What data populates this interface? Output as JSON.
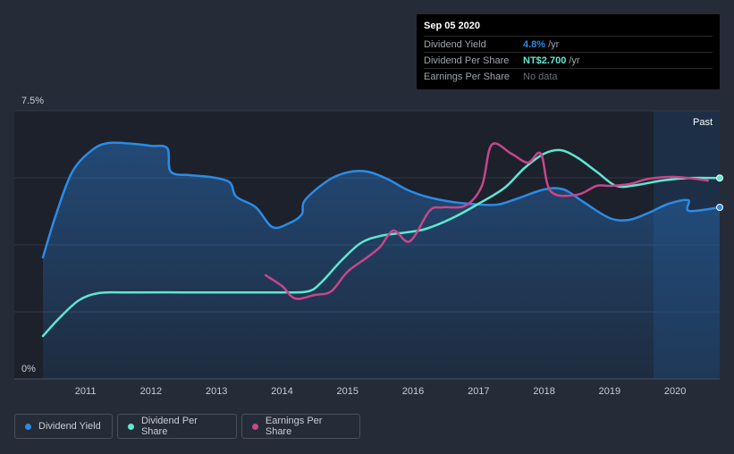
{
  "chart_data": {
    "type": "line",
    "x_ticks": [
      "2011",
      "2012",
      "2013",
      "2014",
      "2015",
      "2016",
      "2017",
      "2018",
      "2019",
      "2020"
    ],
    "y_ticks": [
      "7.5%",
      "0%"
    ],
    "xlim": [
      2010.35,
      2020.68
    ],
    "ylim": [
      0,
      7.5
    ],
    "past_label": "Past",
    "series": [
      {
        "name": "Dividend Yield",
        "key": "yield",
        "color": "#2b8be6",
        "fill": true,
        "points": [
          [
            2010.35,
            3.4
          ],
          [
            2010.55,
            4.6
          ],
          [
            2010.8,
            5.8
          ],
          [
            2011.1,
            6.4
          ],
          [
            2011.35,
            6.6
          ],
          [
            2011.7,
            6.58
          ],
          [
            2012.0,
            6.52
          ],
          [
            2012.25,
            6.45
          ],
          [
            2012.3,
            5.8
          ],
          [
            2012.6,
            5.7
          ],
          [
            2012.9,
            5.65
          ],
          [
            2013.2,
            5.5
          ],
          [
            2013.3,
            5.1
          ],
          [
            2013.6,
            4.8
          ],
          [
            2013.85,
            4.25
          ],
          [
            2014.1,
            4.35
          ],
          [
            2014.3,
            4.6
          ],
          [
            2014.35,
            5.0
          ],
          [
            2014.7,
            5.55
          ],
          [
            2015.0,
            5.78
          ],
          [
            2015.3,
            5.8
          ],
          [
            2015.6,
            5.6
          ],
          [
            2015.9,
            5.3
          ],
          [
            2016.2,
            5.1
          ],
          [
            2016.6,
            4.95
          ],
          [
            2017.0,
            4.88
          ],
          [
            2017.3,
            4.88
          ],
          [
            2017.6,
            5.05
          ],
          [
            2018.0,
            5.3
          ],
          [
            2018.3,
            5.3
          ],
          [
            2018.6,
            4.95
          ],
          [
            2019.0,
            4.5
          ],
          [
            2019.3,
            4.45
          ],
          [
            2019.6,
            4.65
          ],
          [
            2019.9,
            4.9
          ],
          [
            2020.2,
            5.0
          ],
          [
            2020.21,
            4.7
          ],
          [
            2020.68,
            4.8
          ]
        ]
      },
      {
        "name": "Dividend Per Share",
        "key": "dps",
        "color": "#5fe7d1",
        "fill": false,
        "points": [
          [
            2010.35,
            1.2
          ],
          [
            2010.6,
            1.7
          ],
          [
            2010.9,
            2.2
          ],
          [
            2011.2,
            2.4
          ],
          [
            2011.6,
            2.42
          ],
          [
            2012.5,
            2.42
          ],
          [
            2013.5,
            2.42
          ],
          [
            2014.0,
            2.42
          ],
          [
            2014.4,
            2.45
          ],
          [
            2014.6,
            2.7
          ],
          [
            2014.9,
            3.3
          ],
          [
            2015.2,
            3.8
          ],
          [
            2015.5,
            4.0
          ],
          [
            2015.9,
            4.1
          ],
          [
            2016.2,
            4.2
          ],
          [
            2016.6,
            4.5
          ],
          [
            2017.0,
            4.9
          ],
          [
            2017.4,
            5.35
          ],
          [
            2017.7,
            5.9
          ],
          [
            2018.0,
            6.3
          ],
          [
            2018.25,
            6.4
          ],
          [
            2018.5,
            6.2
          ],
          [
            2018.8,
            5.8
          ],
          [
            2019.1,
            5.4
          ],
          [
            2019.4,
            5.42
          ],
          [
            2019.8,
            5.55
          ],
          [
            2020.2,
            5.62
          ],
          [
            2020.68,
            5.62
          ]
        ]
      },
      {
        "name": "Earnings Per Share",
        "key": "eps",
        "color": "#c7468a",
        "fill": false,
        "points": [
          [
            2013.75,
            2.9
          ],
          [
            2014.0,
            2.6
          ],
          [
            2014.2,
            2.25
          ],
          [
            2014.5,
            2.35
          ],
          [
            2014.75,
            2.45
          ],
          [
            2015.0,
            3.0
          ],
          [
            2015.3,
            3.4
          ],
          [
            2015.5,
            3.7
          ],
          [
            2015.7,
            4.15
          ],
          [
            2015.95,
            3.85
          ],
          [
            2016.25,
            4.7
          ],
          [
            2016.45,
            4.8
          ],
          [
            2016.8,
            4.85
          ],
          [
            2017.05,
            5.4
          ],
          [
            2017.2,
            6.55
          ],
          [
            2017.5,
            6.3
          ],
          [
            2017.75,
            6.05
          ],
          [
            2017.95,
            6.3
          ],
          [
            2018.1,
            5.25
          ],
          [
            2018.5,
            5.15
          ],
          [
            2018.8,
            5.4
          ],
          [
            2019.0,
            5.4
          ],
          [
            2019.3,
            5.45
          ],
          [
            2019.6,
            5.6
          ],
          [
            2020.0,
            5.65
          ],
          [
            2020.5,
            5.55
          ]
        ]
      }
    ]
  },
  "tooltip": {
    "date": "Sep 05 2020",
    "rows": [
      {
        "label": "Dividend Yield",
        "value": "4.8%",
        "unit": "/yr",
        "color": "#2b8be6"
      },
      {
        "label": "Dividend Per Share",
        "value": "NT$2.700",
        "unit": "/yr",
        "color": "#5fe7d1"
      },
      {
        "label": "Earnings Per Share",
        "nodata": "No data"
      }
    ]
  },
  "legend": [
    {
      "label": "Dividend Yield",
      "color": "#2b8be6"
    },
    {
      "label": "Dividend Per Share",
      "color": "#5fe7d1"
    },
    {
      "label": "Earnings Per Share",
      "color": "#c7468a"
    }
  ]
}
